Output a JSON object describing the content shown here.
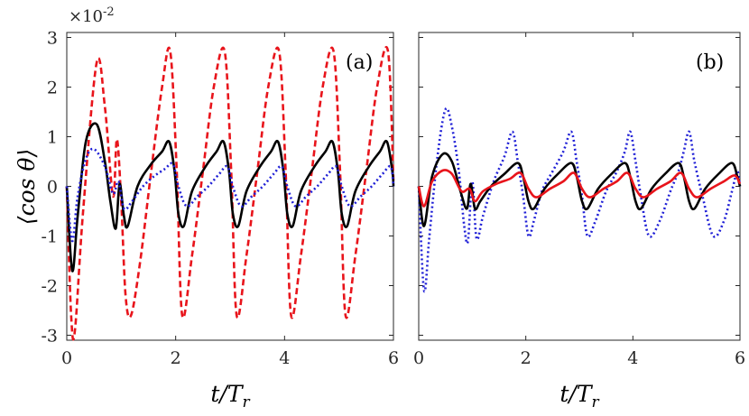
{
  "chart_data": [
    {
      "type": "line",
      "panel_label": "(a)",
      "xlabel": "t/T",
      "xlabel_sub": "r",
      "ylabel": "⟨cos θ⟩",
      "y_exponent_label": "×10",
      "y_exponent_power": "-2",
      "xlim": [
        0,
        6
      ],
      "ylim": [
        -3.1,
        3.1
      ],
      "xticks": [
        0,
        2,
        4,
        6
      ],
      "yticks": [
        -3,
        -2,
        -1,
        0,
        1,
        2,
        3
      ],
      "xtick_labels": [
        "0",
        "2",
        "4",
        "6"
      ],
      "ytick_labels": [
        "-3",
        "-2",
        "-1",
        "0",
        "1",
        "2",
        "3"
      ],
      "series": [
        {
          "name": "red-dashed",
          "color": "#e8141b",
          "dash": "7,4",
          "x": [
            0,
            0.08,
            0.15,
            0.3,
            0.55,
            0.7,
            0.85,
            0.92,
            1.0,
            1.08,
            1.18,
            1.35,
            1.55,
            1.75,
            1.9,
            2.02,
            2.12,
            2.3,
            2.5,
            2.7,
            2.9,
            3.02,
            3.12,
            3.3,
            3.5,
            3.7,
            3.9,
            4.02,
            4.12,
            4.3,
            4.5,
            4.7,
            4.9,
            5.02,
            5.12,
            5.3,
            5.5,
            5.7,
            5.9,
            6.0
          ],
          "y": [
            0,
            -2.6,
            -2.9,
            -0.5,
            2.5,
            1.6,
            -0.2,
            0.95,
            -0.3,
            -2.2,
            -2.6,
            -1.5,
            0.3,
            2.0,
            2.72,
            0.3,
            -2.6,
            -1.4,
            0.3,
            2.0,
            2.72,
            0.3,
            -2.6,
            -1.4,
            0.3,
            2.0,
            2.72,
            0.3,
            -2.6,
            -1.4,
            0.3,
            2.0,
            2.72,
            0.3,
            -2.6,
            -1.4,
            0.3,
            2.0,
            2.72,
            0.1
          ]
        },
        {
          "name": "black-solid",
          "color": "#000000",
          "dash": "",
          "x": [
            0,
            0.1,
            0.2,
            0.35,
            0.55,
            0.7,
            0.8,
            0.9,
            0.97,
            1.05,
            1.12,
            1.3,
            1.55,
            1.75,
            1.88,
            1.98,
            2.05,
            2.15,
            2.3,
            2.55,
            2.75,
            2.88,
            2.98,
            3.05,
            3.15,
            3.3,
            3.55,
            3.75,
            3.88,
            3.98,
            4.05,
            4.15,
            4.3,
            4.55,
            4.75,
            4.88,
            4.98,
            5.05,
            5.15,
            5.3,
            5.55,
            5.75,
            5.88,
            5.98,
            6.0
          ],
          "y": [
            0,
            -1.7,
            -0.6,
            0.9,
            1.25,
            0.5,
            -0.3,
            -0.85,
            0.05,
            -0.6,
            -0.8,
            0.0,
            0.45,
            0.7,
            0.9,
            0.3,
            -0.55,
            -0.8,
            -0.1,
            0.4,
            0.7,
            0.9,
            0.3,
            -0.55,
            -0.8,
            -0.1,
            0.4,
            0.7,
            0.9,
            0.3,
            -0.55,
            -0.8,
            -0.1,
            0.4,
            0.7,
            0.9,
            0.3,
            -0.55,
            -0.8,
            -0.1,
            0.4,
            0.7,
            0.9,
            0.3,
            0.0
          ]
        },
        {
          "name": "blue-dotted",
          "color": "#1f1fd6",
          "dash": "2,3",
          "x": [
            0,
            0.1,
            0.2,
            0.35,
            0.5,
            0.7,
            0.85,
            0.95,
            1.05,
            1.2,
            1.4,
            1.6,
            1.8,
            1.95,
            2.05,
            2.2,
            2.4,
            2.6,
            2.8,
            2.95,
            3.05,
            3.2,
            3.4,
            3.6,
            3.8,
            3.95,
            4.05,
            4.2,
            4.4,
            4.6,
            4.8,
            4.95,
            5.05,
            5.2,
            5.4,
            5.6,
            5.8,
            5.95,
            6.0
          ],
          "y": [
            0,
            -1.1,
            -0.2,
            0.55,
            0.75,
            0.4,
            -0.15,
            0.1,
            -0.45,
            -0.3,
            0.0,
            0.2,
            0.35,
            0.45,
            0.0,
            -0.4,
            -0.2,
            0.0,
            0.25,
            0.4,
            0.0,
            -0.4,
            -0.2,
            0.0,
            0.25,
            0.4,
            0.0,
            -0.4,
            -0.2,
            0.0,
            0.25,
            0.4,
            0.0,
            -0.4,
            -0.2,
            0.0,
            0.25,
            0.4,
            0.0
          ]
        }
      ]
    },
    {
      "type": "line",
      "panel_label": "(b)",
      "xlabel": "t/T",
      "xlabel_sub": "r",
      "xlim": [
        0,
        6
      ],
      "ylim": [
        -3.1,
        3.1
      ],
      "xticks": [
        0,
        2,
        4,
        6
      ],
      "xtick_labels": [
        "0",
        "2",
        "4",
        "6"
      ],
      "series": [
        {
          "name": "blue-dotted",
          "color": "#1f1fd6",
          "dash": "2,3",
          "x": [
            0,
            0.1,
            0.2,
            0.35,
            0.5,
            0.62,
            0.75,
            0.85,
            0.92,
            1.0,
            1.08,
            1.2,
            1.4,
            1.6,
            1.75,
            1.85,
            1.95,
            2.05,
            2.15,
            2.3,
            2.5,
            2.7,
            2.85,
            2.95,
            3.05,
            3.15,
            3.3,
            3.5,
            3.7,
            3.85,
            3.95,
            4.05,
            4.15,
            4.3,
            4.5,
            4.7,
            4.85,
            4.95,
            5.05,
            5.15,
            5.3,
            5.5,
            5.7,
            5.85,
            5.95,
            6.0
          ],
          "y": [
            0,
            -2.1,
            -1.0,
            0.6,
            1.55,
            1.2,
            0.3,
            -0.8,
            -1.1,
            0.1,
            -1.05,
            -0.6,
            0.1,
            0.6,
            1.1,
            0.5,
            -0.2,
            -1.0,
            -0.7,
            -0.1,
            0.3,
            0.7,
            1.1,
            0.5,
            -0.2,
            -1.0,
            -0.7,
            -0.1,
            0.3,
            0.7,
            1.1,
            0.5,
            -0.2,
            -1.0,
            -0.7,
            -0.1,
            0.3,
            0.7,
            1.1,
            0.5,
            -0.2,
            -1.0,
            -0.7,
            -0.1,
            0.3,
            0.0
          ]
        },
        {
          "name": "black-solid",
          "color": "#000000",
          "dash": "",
          "x": [
            0,
            0.1,
            0.25,
            0.45,
            0.62,
            0.78,
            0.9,
            0.97,
            1.05,
            1.15,
            1.35,
            1.6,
            1.85,
            1.95,
            2.05,
            2.15,
            2.35,
            2.6,
            2.85,
            2.95,
            3.05,
            3.15,
            3.35,
            3.6,
            3.85,
            3.95,
            4.05,
            4.15,
            4.35,
            4.6,
            4.85,
            4.95,
            5.05,
            5.15,
            5.35,
            5.6,
            5.85,
            5.95,
            6.0
          ],
          "y": [
            0,
            -0.8,
            0.2,
            0.65,
            0.5,
            -0.1,
            -0.45,
            0.05,
            -0.45,
            -0.3,
            0.0,
            0.25,
            0.47,
            0.2,
            -0.3,
            -0.45,
            -0.05,
            0.25,
            0.47,
            0.2,
            -0.3,
            -0.45,
            -0.05,
            0.25,
            0.47,
            0.2,
            -0.3,
            -0.45,
            -0.05,
            0.25,
            0.47,
            0.2,
            -0.3,
            -0.45,
            -0.05,
            0.25,
            0.47,
            0.2,
            0.0
          ]
        },
        {
          "name": "red-solid",
          "color": "#e8141b",
          "dash": "",
          "x": [
            0,
            0.1,
            0.25,
            0.45,
            0.62,
            0.8,
            0.95,
            1.05,
            1.2,
            1.45,
            1.7,
            1.9,
            2.05,
            2.2,
            2.45,
            2.7,
            2.9,
            3.05,
            3.2,
            3.45,
            3.7,
            3.9,
            4.05,
            4.2,
            4.45,
            4.7,
            4.9,
            5.05,
            5.2,
            5.45,
            5.7,
            5.9,
            6.0
          ],
          "y": [
            0,
            -0.4,
            0.1,
            0.32,
            0.25,
            -0.1,
            -0.05,
            -0.3,
            -0.1,
            0.05,
            0.15,
            0.27,
            -0.05,
            -0.22,
            -0.05,
            0.1,
            0.27,
            -0.05,
            -0.22,
            -0.05,
            0.1,
            0.27,
            -0.05,
            -0.22,
            -0.05,
            0.1,
            0.27,
            -0.05,
            -0.22,
            -0.05,
            0.1,
            0.22,
            0.05
          ]
        }
      ]
    }
  ]
}
